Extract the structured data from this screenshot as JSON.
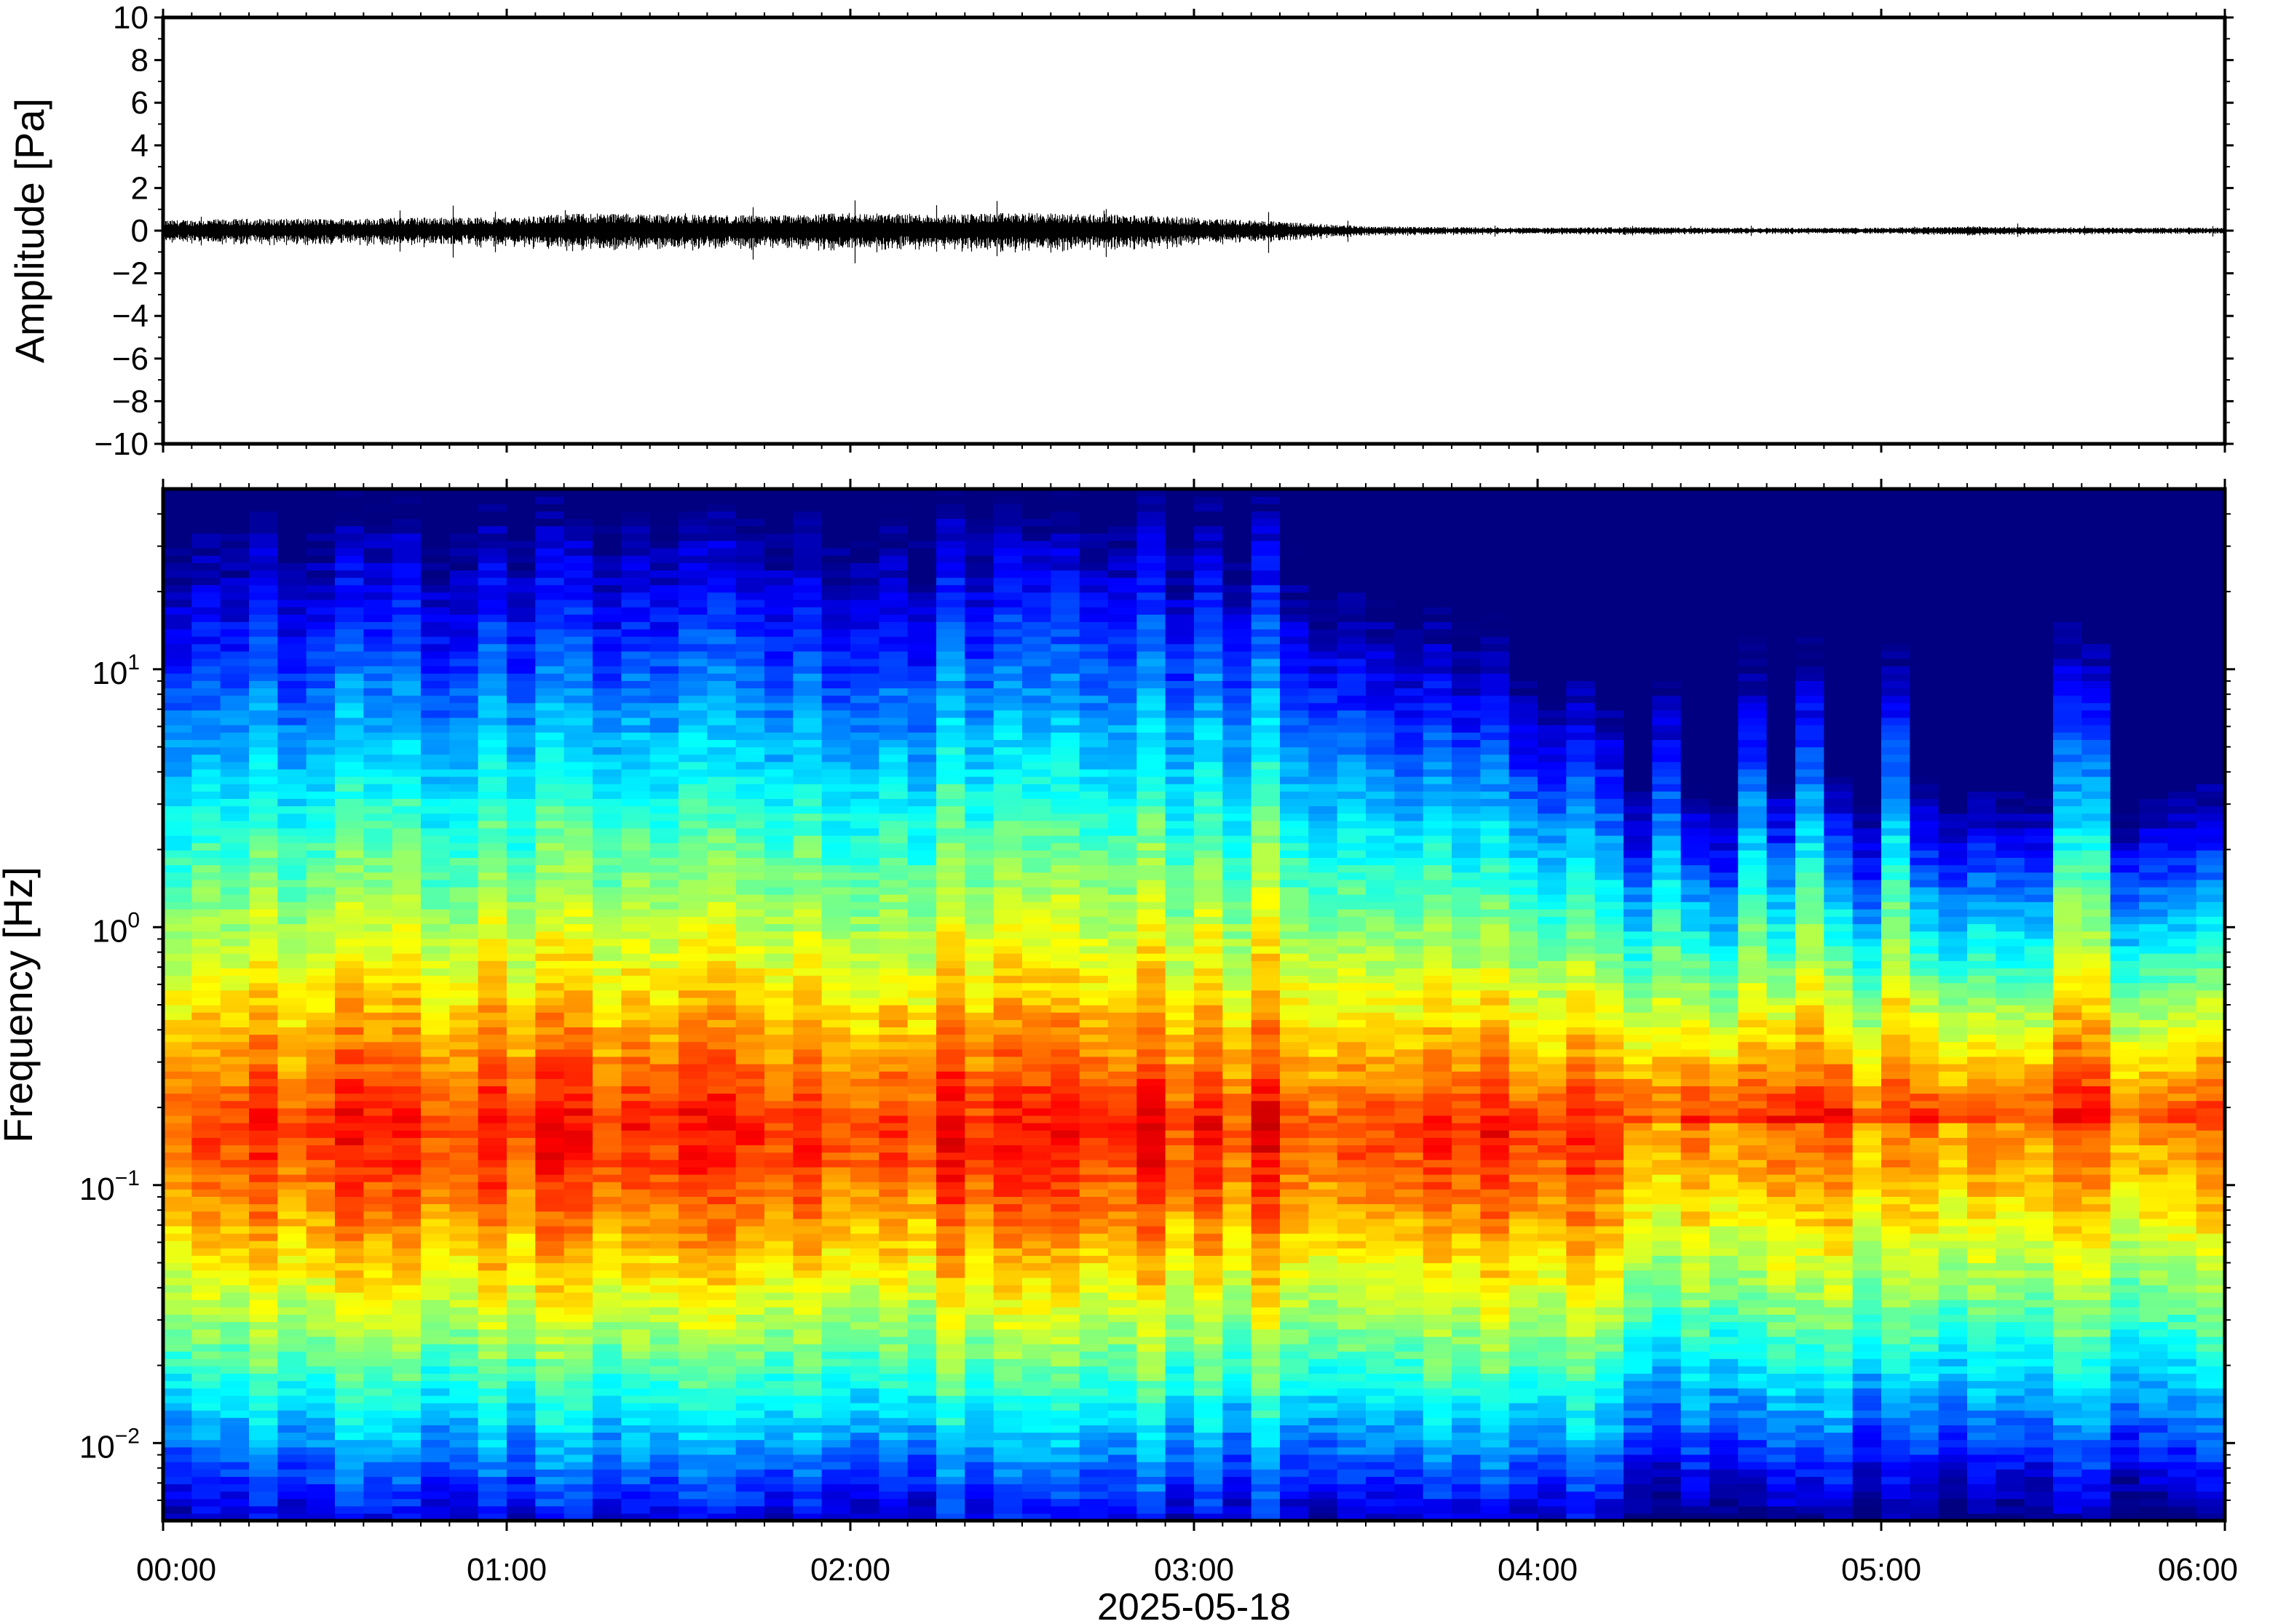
{
  "chart_data": [
    {
      "type": "line",
      "name": "waveform",
      "ylabel": "Amplitude [Pa]",
      "xlabel": "",
      "title": "",
      "ylim": [
        -10,
        10
      ],
      "yticks": [
        10,
        8,
        6,
        4,
        2,
        0,
        -2,
        -4,
        -6,
        -8,
        -10
      ],
      "ytick_labels": [
        "10",
        "8",
        "6",
        "4",
        "2",
        "0",
        "−2",
        "−4",
        "−6",
        "−8",
        "−10"
      ],
      "xlim_hours": [
        0,
        6
      ],
      "x_hours": [
        0,
        0.25,
        0.5,
        0.75,
        1.0,
        1.25,
        1.5,
        1.75,
        2.0,
        2.25,
        2.5,
        2.75,
        3.0,
        3.25,
        3.5,
        3.75,
        4.0,
        4.25,
        4.5,
        4.75,
        5.0,
        5.25,
        5.5,
        5.75,
        6.0
      ],
      "envelope_pa": [
        0.35,
        0.4,
        0.4,
        0.45,
        0.45,
        0.6,
        0.55,
        0.5,
        0.6,
        0.55,
        0.6,
        0.55,
        0.45,
        0.3,
        0.15,
        0.12,
        0.1,
        0.12,
        0.1,
        0.1,
        0.1,
        0.15,
        0.1,
        0.1,
        0.1
      ],
      "grid": false
    },
    {
      "type": "heatmap",
      "name": "spectrogram",
      "ylabel": "Frequency [Hz]",
      "xlabel": "2025-05-18",
      "title": "",
      "y_scale": "log",
      "ylim_hz": [
        0.005,
        50
      ],
      "yticks": [
        0.01,
        0.1,
        1,
        10
      ],
      "ytick_labels": [
        {
          "base": "10",
          "exp": "−2"
        },
        {
          "base": "10",
          "exp": "−1"
        },
        {
          "base": "10",
          "exp": "0"
        },
        {
          "base": "10",
          "exp": "1"
        }
      ],
      "xlim_hours": [
        0,
        6
      ],
      "xticks_hours": [
        0,
        1,
        2,
        3,
        4,
        5,
        6
      ],
      "xtick_labels": [
        "00:00",
        "01:00",
        "02:00",
        "03:00",
        "04:00",
        "05:00",
        "06:00"
      ],
      "colormap": "jet",
      "peak_band_hz": 0.17,
      "colors": {
        "low": "#00007f",
        "mid": "#7fff7f",
        "high": "#ff0000"
      },
      "grid": false
    }
  ],
  "colors": {
    "frame": "#000000",
    "trace": "#000000",
    "background": "#ffffff"
  }
}
